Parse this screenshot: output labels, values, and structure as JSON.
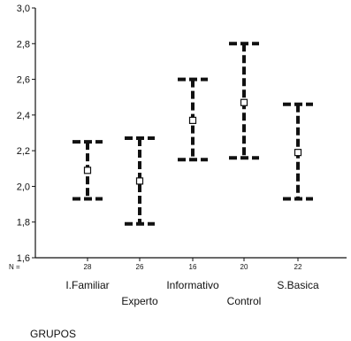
{
  "chart_data": {
    "type": "errorbar",
    "title": "",
    "xlabel": "GRUPOS",
    "ylabel": "",
    "ylim": [
      1.6,
      3.0
    ],
    "yticks": [
      "1,6",
      "1,8",
      "2,0",
      "2,2",
      "2,4",
      "2,6",
      "2,8",
      "3,0"
    ],
    "n_prefix": "N =",
    "grid": false,
    "categories": [
      "I.Familiar",
      "Experto",
      "Informativo",
      "Control",
      "S.Basica"
    ],
    "n": [
      "28",
      "26",
      "16",
      "20",
      "22"
    ],
    "mean": [
      2.09,
      2.03,
      2.37,
      2.47,
      2.19
    ],
    "lower": [
      1.93,
      1.79,
      2.15,
      2.16,
      1.93
    ],
    "upper": [
      2.25,
      2.27,
      2.6,
      2.8,
      2.46
    ]
  }
}
